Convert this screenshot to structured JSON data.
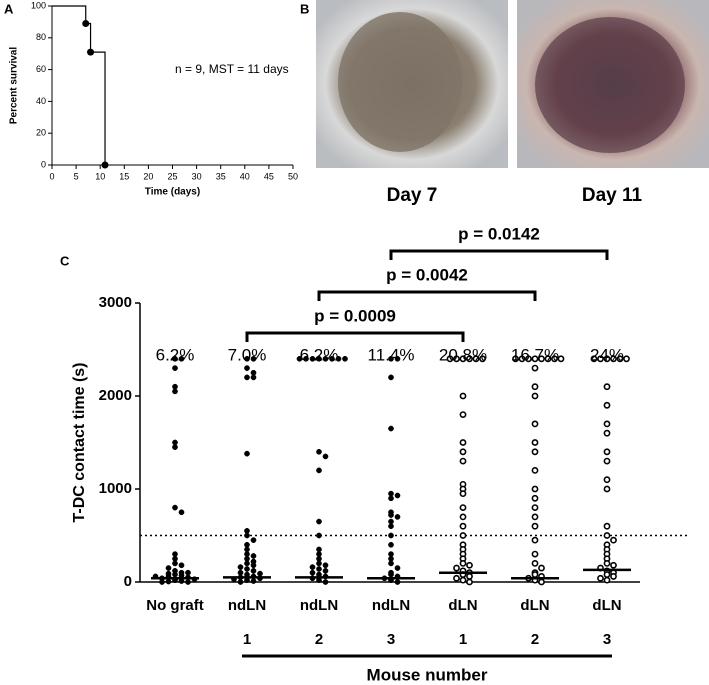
{
  "chart_data": [
    {
      "type": "step",
      "label": "A",
      "x": [
        0,
        7,
        8,
        11
      ],
      "values": [
        100,
        89,
        71,
        0
      ],
      "xlim": [
        0,
        50
      ],
      "xticks": [
        0,
        5,
        10,
        15,
        20,
        25,
        30,
        35,
        40,
        45,
        50
      ],
      "ylim": [
        0,
        100
      ],
      "yticks": [
        0,
        20,
        40,
        60,
        80,
        100
      ],
      "xlabel": "Time (days)",
      "ylabel": "Percent survival",
      "annotation": "n = 9, MST = 11 days",
      "color": "#000000"
    },
    {
      "type": "dotplot",
      "label": "C",
      "ylabel": "T-DC contact time (s)",
      "ylim": [
        0,
        3000
      ],
      "yticks": [
        0,
        1000,
        2000,
        3000
      ],
      "categories": [
        "No graft",
        "ndLN",
        "ndLN",
        "ndLN",
        "dLN",
        "dLN",
        "dLN"
      ],
      "mouse_numbers": [
        null,
        "1",
        "2",
        "3",
        "1",
        "2",
        "3"
      ],
      "group_label": "Mouse number",
      "percent": [
        6.2,
        7.0,
        6.2,
        11.4,
        20.8,
        16.7,
        24
      ],
      "value_labels": [
        "6.2%",
        "7.0%",
        "6.2%",
        "11.4%",
        "20.8%",
        "16.7%",
        "24%"
      ],
      "medians": [
        40,
        50,
        50,
        40,
        100,
        40,
        130
      ],
      "threshold": 500,
      "markers": [
        "filled",
        "filled",
        "filled",
        "filled",
        "open",
        "open",
        "open"
      ],
      "groups": [
        [
          2400,
          2400,
          2300,
          2100,
          2050,
          1500,
          1450,
          800,
          750,
          300,
          250,
          200,
          180,
          150,
          120,
          100,
          90,
          80,
          70,
          60,
          50,
          40,
          30,
          20,
          10,
          5,
          0,
          0,
          100,
          60
        ],
        [
          2400,
          2400,
          2300,
          2250,
          2200,
          2200,
          1380,
          550,
          500,
          450,
          400,
          350,
          300,
          280,
          250,
          220,
          200,
          180,
          160,
          140,
          120,
          100,
          90,
          80,
          60,
          50,
          40,
          30,
          20,
          10,
          0
        ],
        [
          2400,
          2400,
          2400,
          2400,
          2400,
          2400,
          2400,
          2400,
          1400,
          1350,
          1200,
          650,
          500,
          350,
          300,
          250,
          200,
          180,
          160,
          140,
          120,
          100,
          80,
          60,
          40,
          20,
          0
        ],
        [
          2400,
          2400,
          2200,
          1650,
          950,
          930,
          900,
          750,
          720,
          700,
          650,
          600,
          500,
          400,
          300,
          250,
          200,
          150,
          100,
          80,
          60,
          40,
          20,
          0
        ],
        [
          2400,
          2400,
          2400,
          2400,
          2400,
          2400,
          2000,
          1800,
          1500,
          1400,
          1300,
          1050,
          1000,
          950,
          800,
          700,
          600,
          500,
          400,
          350,
          300,
          250,
          200,
          180,
          150,
          120,
          100,
          80,
          60,
          40,
          20,
          0
        ],
        [
          2400,
          2400,
          2400,
          2400,
          2400,
          2400,
          2400,
          2400,
          2300,
          2100,
          2000,
          1700,
          1500,
          1400,
          1200,
          1000,
          900,
          800,
          700,
          600,
          450,
          300,
          200,
          150,
          100,
          80,
          60,
          40,
          20,
          0
        ],
        [
          2400,
          2400,
          2400,
          2400,
          2400,
          2400,
          2100,
          1900,
          1700,
          1600,
          1400,
          1300,
          1100,
          1000,
          600,
          500,
          450,
          400,
          350,
          300,
          250,
          200,
          180,
          150,
          120,
          100,
          80,
          60,
          40,
          20
        ]
      ],
      "comparisons": [
        {
          "from": 1,
          "to": 4,
          "label": "p = 0.0009"
        },
        {
          "from": 2,
          "to": 5,
          "label": "p = 0.0042"
        },
        {
          "from": 3,
          "to": 6,
          "label": "p = 0.0142"
        }
      ]
    }
  ],
  "panel_b": {
    "label": "B",
    "captions": [
      "Day 7",
      "Day 11"
    ]
  }
}
